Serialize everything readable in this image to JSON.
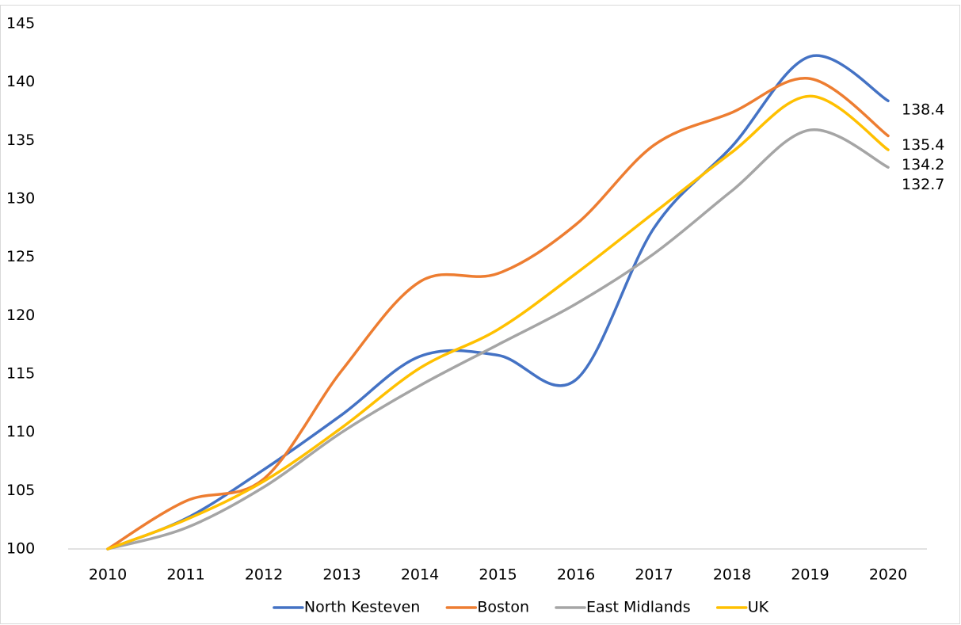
{
  "chart_data": {
    "type": "line",
    "categories": [
      "2010",
      "2011",
      "2012",
      "2013",
      "2014",
      "2015",
      "2016",
      "2017",
      "2018",
      "2019",
      "2020"
    ],
    "series": [
      {
        "name": "North Kesteven",
        "color": "#4472c4",
        "values": [
          100,
          102.6,
          106.8,
          111.5,
          116.5,
          116.6,
          114.5,
          127.5,
          134.5,
          142.2,
          138.4
        ]
      },
      {
        "name": "Boston",
        "color": "#ed7d31",
        "values": [
          100,
          104.1,
          106.0,
          115.3,
          122.9,
          123.6,
          127.8,
          134.6,
          137.4,
          140.3,
          135.4
        ]
      },
      {
        "name": "East Midlands",
        "color": "#a5a5a5",
        "values": [
          100,
          101.8,
          105.3,
          110.0,
          114.0,
          117.5,
          121.0,
          125.3,
          130.7,
          135.9,
          132.7
        ]
      },
      {
        "name": "UK",
        "color": "#ffc000",
        "values": [
          100,
          102.5,
          105.8,
          110.4,
          115.5,
          118.8,
          123.6,
          128.8,
          134.0,
          138.8,
          134.2
        ]
      }
    ],
    "ylim": [
      100,
      145
    ],
    "yticks": [
      100,
      105,
      110,
      115,
      120,
      125,
      130,
      135,
      140,
      145
    ],
    "grid": false,
    "legend": "bottom"
  }
}
